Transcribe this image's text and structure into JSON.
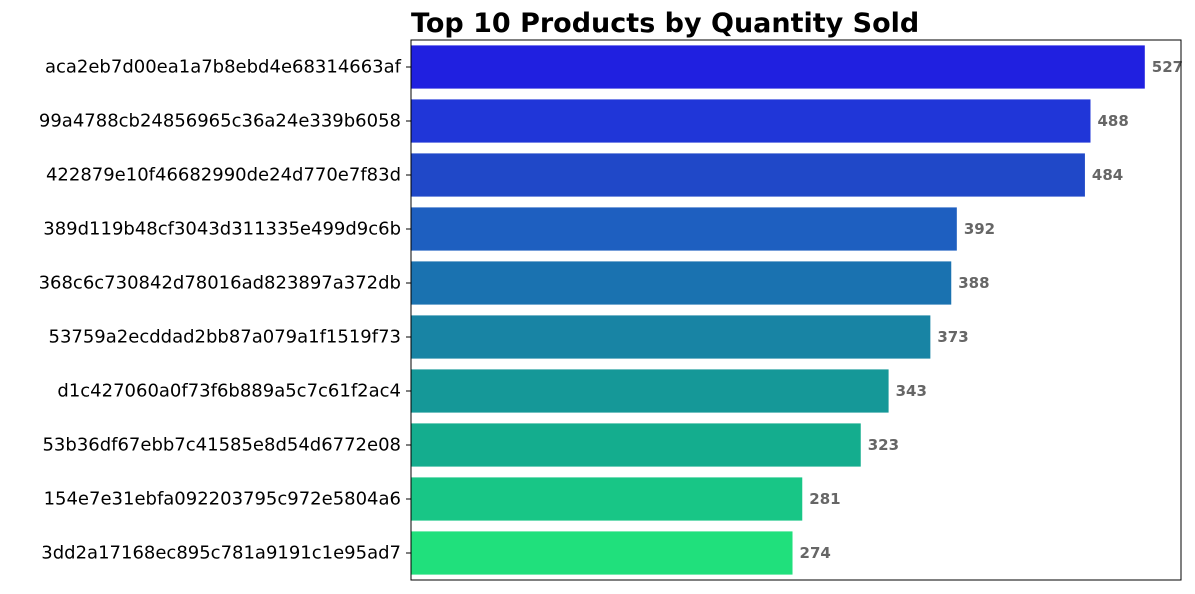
{
  "chart_data": {
    "type": "bar",
    "orientation": "horizontal",
    "title": "Top 10 Products by Quantity Sold",
    "xlabel": "",
    "ylabel": "",
    "xlim": [
      0,
      553
    ],
    "grid": false,
    "x_ticks_visible": false,
    "categories": [
      "aca2eb7d00ea1a7b8ebd4e68314663af",
      "99a4788cb24856965c36a24e339b6058",
      "422879e10f46682990de24d770e7f83d",
      "389d119b48cf3043d311335e499d9c6b",
      "368c6c730842d78016ad823897a372db",
      "53759a2ecddad2bb87a079a1f1519f73",
      "d1c427060a0f73f6b889a5c7c61f2ac4",
      "53b36df67ebb7c41585e8d54d6772e08",
      "154e7e31ebfa092203795c972e5804a6",
      "3dd2a17168ec895c781a9191c1e95ad7"
    ],
    "values": [
      527,
      488,
      484,
      392,
      388,
      373,
      343,
      323,
      281,
      274
    ],
    "colors": [
      "#2020e0",
      "#2036d8",
      "#2048c8",
      "#1e5fc0",
      "#1a72b0",
      "#1884a4",
      "#159898",
      "#14ad8e",
      "#18c686",
      "#20e07c"
    ]
  }
}
